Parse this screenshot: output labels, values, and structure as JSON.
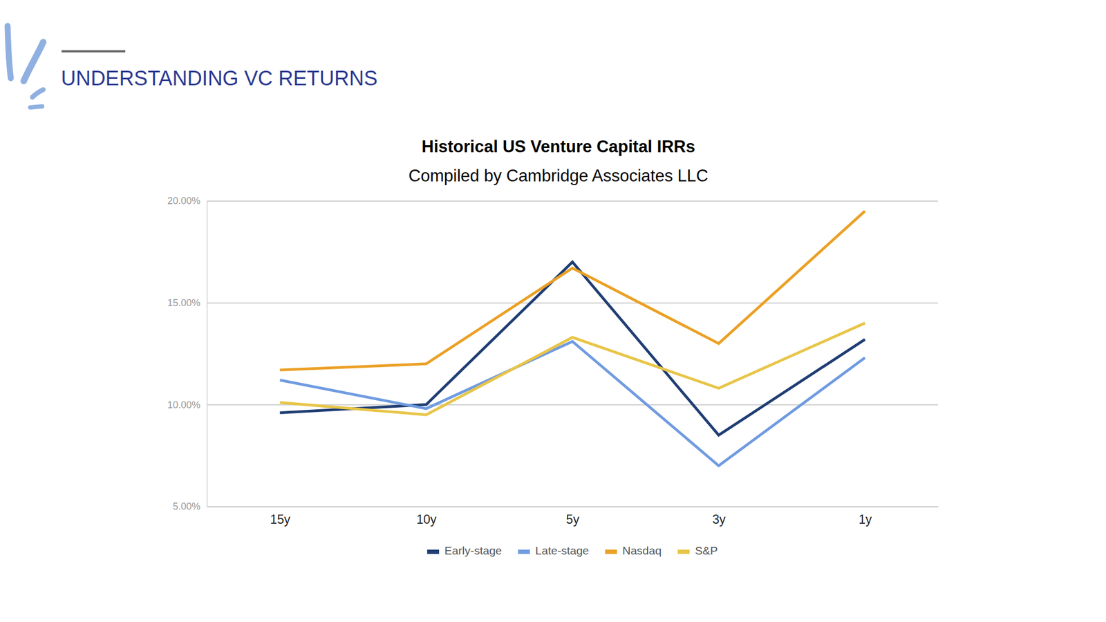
{
  "header": {
    "title": "UNDERSTANDING VC RETURNS"
  },
  "chart_data": {
    "type": "line",
    "title": "Historical US Venture Capital IRRs",
    "subtitle": "Compiled by Cambridge Associates LLC",
    "categories": [
      "15y",
      "10y",
      "5y",
      "3y",
      "1y"
    ],
    "series": [
      {
        "name": "Early-stage",
        "color": "#1f3d73",
        "values": [
          9.6,
          10.0,
          17.0,
          8.5,
          13.2
        ]
      },
      {
        "name": "Late-stage",
        "color": "#6f9be0",
        "values": [
          11.2,
          9.8,
          13.1,
          7.0,
          12.3
        ]
      },
      {
        "name": "Nasdaq",
        "color": "#eba024",
        "values": [
          11.7,
          12.0,
          16.7,
          13.0,
          19.5
        ]
      },
      {
        "name": "S&P",
        "color": "#e8c547",
        "values": [
          10.1,
          9.5,
          13.3,
          10.8,
          14.0
        ]
      }
    ],
    "ylim": [
      5,
      20
    ],
    "yticks": [
      {
        "value": 5,
        "label": "5.00%"
      },
      {
        "value": 10,
        "label": "10.00%"
      },
      {
        "value": 15,
        "label": "15.00%"
      },
      {
        "value": 20,
        "label": "20.00%"
      }
    ],
    "grid": true,
    "legend": "bottom"
  }
}
